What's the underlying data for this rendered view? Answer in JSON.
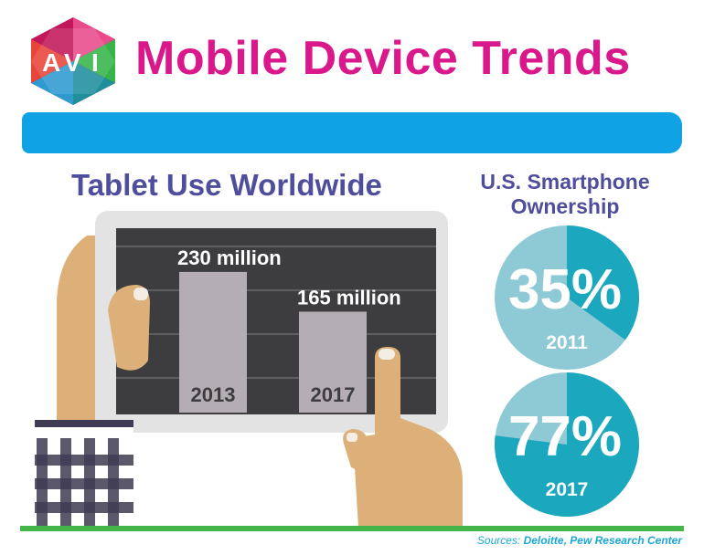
{
  "header": {
    "logo_letters": [
      "A",
      "V",
      "I"
    ],
    "title": "Mobile Device Trends"
  },
  "tablet": {
    "title": "Tablet Use Worldwide"
  },
  "smartphone": {
    "title": "U.S. Smartphone Ownership"
  },
  "sources": {
    "prefix": "Sources:",
    "names": "Deloitte, Pew Research Center"
  },
  "colors": {
    "title_pink": "#d8188b",
    "header_bar": "#0fa3e6",
    "section_purple": "#4f4e9c",
    "screen_dark": "#3d3d3f",
    "bar_grey": "#b4aeb4",
    "pie_dark": "#1ba8be",
    "pie_light": "#8ecad6",
    "ground_green": "#44b649",
    "skin": "#ddb07a"
  },
  "chart_data": [
    {
      "type": "bar",
      "title": "Tablet Use Worldwide",
      "categories": [
        "2013",
        "2017"
      ],
      "values": [
        230,
        165
      ],
      "data_labels": [
        "230 million",
        "165 million"
      ],
      "unit": "million",
      "ylim": [
        0,
        300
      ],
      "grid": true
    },
    {
      "type": "pie",
      "title": "U.S. Smartphone Ownership",
      "year": "2011",
      "value": 35,
      "label": "35%"
    },
    {
      "type": "pie",
      "title": "U.S. Smartphone Ownership",
      "year": "2017",
      "value": 77,
      "label": "77%"
    }
  ]
}
